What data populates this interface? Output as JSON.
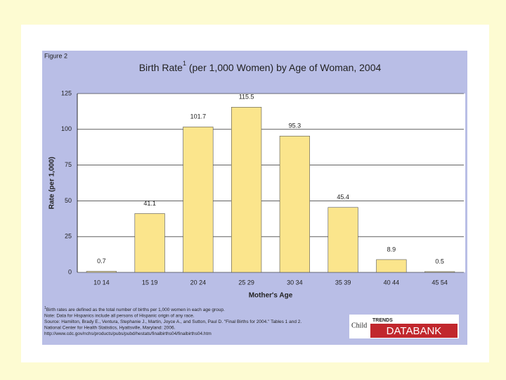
{
  "figure_label": "Figure 2",
  "chart_data": {
    "type": "bar",
    "title": {
      "main": "Birth Rate",
      "sup": "1",
      "rest": " (per 1,000 Women) by Age of Woman, 2004"
    },
    "x_label": "Mother's Age",
    "y_label": "Rate (per 1,000)",
    "categories": [
      "10 14",
      "15 19",
      "20 24",
      "25 29",
      "30 34",
      "35 39",
      "40 44",
      "45 54"
    ],
    "values": [
      0.7,
      41.1,
      101.7,
      115.5,
      95.3,
      45.4,
      8.9,
      0.5
    ],
    "color": "#fbe58c",
    "ylim": [
      0,
      125
    ],
    "yticks": [
      0,
      25,
      50,
      75,
      100,
      125
    ],
    "grid": true
  },
  "footnotes": [
    {
      "sup": "1",
      "text": "Birth rates are defined as the total number of births per 1,000 women in each age group."
    },
    {
      "text": "Note: Data for Hispanics include all persons of Hispanic origin of any race."
    },
    {
      "text": "Source: Hamilton, Brady E., Ventura, Stephanie J., Martin, Joyce A., and Sutton, Paul D. \"Final Births for 2004.\" Tables 1 and 2."
    },
    {
      "text": "National Center for Health Statistics, Hyattsville, Maryland: 2006."
    },
    {
      "text": "http://www.cdc.gov/nchs/products/pubs/pubd/hestats/finalbirths04/finalbirths04.htm"
    }
  ],
  "logo": {
    "child": "Child",
    "trends": "TRENDS",
    "databank": "DATABANK"
  }
}
